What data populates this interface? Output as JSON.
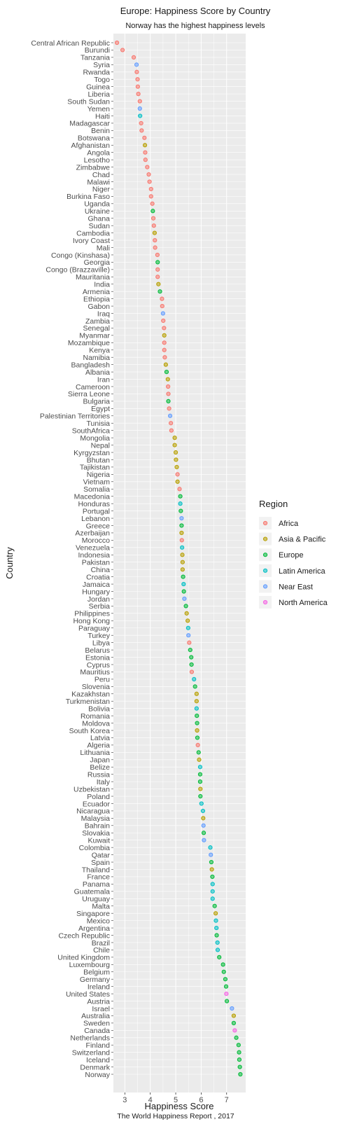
{
  "chart_data": {
    "type": "scatter",
    "title": "Europe: Happiness Score by Country",
    "subtitle": "Norway has the highest happiness levels",
    "xlabel": "Happiness Score",
    "ylabel": "Country",
    "caption": "The World Happiness Report , 2017",
    "xlim": [
      2.55,
      7.75
    ],
    "xticks": [
      3,
      4,
      5,
      6,
      7
    ],
    "grid": true,
    "legend_title": "Region",
    "legend_position": "right",
    "regions": [
      {
        "name": "Africa",
        "color": "#F8766D"
      },
      {
        "name": "Asia & Pacific",
        "color": "#B79F00"
      },
      {
        "name": "Europe",
        "color": "#00BA38"
      },
      {
        "name": "Latin America",
        "color": "#00BFC4"
      },
      {
        "name": "Near East",
        "color": "#619CFF"
      },
      {
        "name": "North America",
        "color": "#F564E3"
      }
    ],
    "points": [
      {
        "country": "Central African Republic",
        "score": 2.69,
        "region": "Africa"
      },
      {
        "country": "Burundi",
        "score": 2.91,
        "region": "Africa"
      },
      {
        "country": "Tanzania",
        "score": 3.35,
        "region": "Africa"
      },
      {
        "country": "Syria",
        "score": 3.46,
        "region": "Near East"
      },
      {
        "country": "Rwanda",
        "score": 3.47,
        "region": "Africa"
      },
      {
        "country": "Togo",
        "score": 3.5,
        "region": "Africa"
      },
      {
        "country": "Guinea",
        "score": 3.51,
        "region": "Africa"
      },
      {
        "country": "Liberia",
        "score": 3.53,
        "region": "Africa"
      },
      {
        "country": "South Sudan",
        "score": 3.59,
        "region": "Africa"
      },
      {
        "country": "Yemen",
        "score": 3.59,
        "region": "Near East"
      },
      {
        "country": "Haiti",
        "score": 3.6,
        "region": "Latin America"
      },
      {
        "country": "Madagascar",
        "score": 3.64,
        "region": "Africa"
      },
      {
        "country": "Benin",
        "score": 3.66,
        "region": "Africa"
      },
      {
        "country": "Botswana",
        "score": 3.77,
        "region": "Africa"
      },
      {
        "country": "Afghanistan",
        "score": 3.79,
        "region": "Asia & Pacific"
      },
      {
        "country": "Angola",
        "score": 3.8,
        "region": "Africa"
      },
      {
        "country": "Lesotho",
        "score": 3.81,
        "region": "Africa"
      },
      {
        "country": "Zimbabwe",
        "score": 3.88,
        "region": "Africa"
      },
      {
        "country": "Chad",
        "score": 3.94,
        "region": "Africa"
      },
      {
        "country": "Malawi",
        "score": 3.97,
        "region": "Africa"
      },
      {
        "country": "Niger",
        "score": 4.03,
        "region": "Africa"
      },
      {
        "country": "Burkina Faso",
        "score": 4.03,
        "region": "Africa"
      },
      {
        "country": "Uganda",
        "score": 4.08,
        "region": "Africa"
      },
      {
        "country": "Ukraine",
        "score": 4.1,
        "region": "Europe"
      },
      {
        "country": "Ghana",
        "score": 4.12,
        "region": "Africa"
      },
      {
        "country": "Sudan",
        "score": 4.14,
        "region": "Africa"
      },
      {
        "country": "Cambodia",
        "score": 4.17,
        "region": "Asia & Pacific"
      },
      {
        "country": "Ivory Coast",
        "score": 4.18,
        "region": "Africa"
      },
      {
        "country": "Mali",
        "score": 4.19,
        "region": "Africa"
      },
      {
        "country": "Congo (Kinshasa)",
        "score": 4.28,
        "region": "Africa"
      },
      {
        "country": "Georgia",
        "score": 4.29,
        "region": "Europe"
      },
      {
        "country": "Congo (Brazzaville)",
        "score": 4.29,
        "region": "Africa"
      },
      {
        "country": "Mauritania",
        "score": 4.29,
        "region": "Africa"
      },
      {
        "country": "India",
        "score": 4.32,
        "region": "Asia & Pacific"
      },
      {
        "country": "Armenia",
        "score": 4.38,
        "region": "Europe"
      },
      {
        "country": "Ethiopia",
        "score": 4.46,
        "region": "Africa"
      },
      {
        "country": "Gabon",
        "score": 4.47,
        "region": "Africa"
      },
      {
        "country": "Iraq",
        "score": 4.5,
        "region": "Near East"
      },
      {
        "country": "Zambia",
        "score": 4.51,
        "region": "Africa"
      },
      {
        "country": "Senegal",
        "score": 4.54,
        "region": "Africa"
      },
      {
        "country": "Myanmar",
        "score": 4.55,
        "region": "Asia & Pacific"
      },
      {
        "country": "Mozambique",
        "score": 4.55,
        "region": "Africa"
      },
      {
        "country": "Kenya",
        "score": 4.55,
        "region": "Africa"
      },
      {
        "country": "Namibia",
        "score": 4.57,
        "region": "Africa"
      },
      {
        "country": "Bangladesh",
        "score": 4.61,
        "region": "Asia & Pacific"
      },
      {
        "country": "Albania",
        "score": 4.64,
        "region": "Europe"
      },
      {
        "country": "Iran",
        "score": 4.69,
        "region": "Asia & Pacific"
      },
      {
        "country": "Cameroon",
        "score": 4.7,
        "region": "Africa"
      },
      {
        "country": "Sierra Leone",
        "score": 4.71,
        "region": "Africa"
      },
      {
        "country": "Bulgaria",
        "score": 4.71,
        "region": "Europe"
      },
      {
        "country": "Egypt",
        "score": 4.74,
        "region": "Africa"
      },
      {
        "country": "Palestinian Territories",
        "score": 4.78,
        "region": "Near East"
      },
      {
        "country": "Tunisia",
        "score": 4.81,
        "region": "Africa"
      },
      {
        "country": "SouthAfrica",
        "score": 4.83,
        "region": "Africa"
      },
      {
        "country": "Mongolia",
        "score": 4.96,
        "region": "Asia & Pacific"
      },
      {
        "country": "Nepal",
        "score": 4.96,
        "region": "Asia & Pacific"
      },
      {
        "country": "Kyrgyzstan",
        "score": 5.0,
        "region": "Asia & Pacific"
      },
      {
        "country": "Bhutan",
        "score": 5.01,
        "region": "Asia & Pacific"
      },
      {
        "country": "Tajikistan",
        "score": 5.04,
        "region": "Asia & Pacific"
      },
      {
        "country": "Nigeria",
        "score": 5.07,
        "region": "Africa"
      },
      {
        "country": "Vietnam",
        "score": 5.07,
        "region": "Asia & Pacific"
      },
      {
        "country": "Somalia",
        "score": 5.15,
        "region": "Africa"
      },
      {
        "country": "Macedonia",
        "score": 5.18,
        "region": "Europe"
      },
      {
        "country": "Honduras",
        "score": 5.18,
        "region": "Latin America"
      },
      {
        "country": "Portugal",
        "score": 5.2,
        "region": "Europe"
      },
      {
        "country": "Lebanon",
        "score": 5.23,
        "region": "Near East"
      },
      {
        "country": "Greece",
        "score": 5.23,
        "region": "Europe"
      },
      {
        "country": "Azerbaijan",
        "score": 5.23,
        "region": "Asia & Pacific"
      },
      {
        "country": "Morocco",
        "score": 5.24,
        "region": "Africa"
      },
      {
        "country": "Venezuela",
        "score": 5.25,
        "region": "Latin America"
      },
      {
        "country": "Indonesia",
        "score": 5.26,
        "region": "Asia & Pacific"
      },
      {
        "country": "Pakistan",
        "score": 5.27,
        "region": "Asia & Pacific"
      },
      {
        "country": "China",
        "score": 5.27,
        "region": "Asia & Pacific"
      },
      {
        "country": "Croatia",
        "score": 5.29,
        "region": "Europe"
      },
      {
        "country": "Jamaica",
        "score": 5.31,
        "region": "Latin America"
      },
      {
        "country": "Hungary",
        "score": 5.32,
        "region": "Europe"
      },
      {
        "country": "Jordan",
        "score": 5.34,
        "region": "Near East"
      },
      {
        "country": "Serbia",
        "score": 5.4,
        "region": "Europe"
      },
      {
        "country": "Philippines",
        "score": 5.43,
        "region": "Asia & Pacific"
      },
      {
        "country": "Hong Kong",
        "score": 5.47,
        "region": "Asia & Pacific"
      },
      {
        "country": "Paraguay",
        "score": 5.49,
        "region": "Latin America"
      },
      {
        "country": "Turkey",
        "score": 5.5,
        "region": "Near East"
      },
      {
        "country": "Libya",
        "score": 5.53,
        "region": "Africa"
      },
      {
        "country": "Belarus",
        "score": 5.57,
        "region": "Europe"
      },
      {
        "country": "Estonia",
        "score": 5.61,
        "region": "Europe"
      },
      {
        "country": "Cyprus",
        "score": 5.62,
        "region": "Europe"
      },
      {
        "country": "Mauritius",
        "score": 5.63,
        "region": "Africa"
      },
      {
        "country": "Peru",
        "score": 5.72,
        "region": "Latin America"
      },
      {
        "country": "Slovenia",
        "score": 5.76,
        "region": "Europe"
      },
      {
        "country": "Kazakhstan",
        "score": 5.82,
        "region": "Asia & Pacific"
      },
      {
        "country": "Turkmenistan",
        "score": 5.82,
        "region": "Asia & Pacific"
      },
      {
        "country": "Bolivia",
        "score": 5.82,
        "region": "Latin America"
      },
      {
        "country": "Romania",
        "score": 5.83,
        "region": "Europe"
      },
      {
        "country": "Moldova",
        "score": 5.84,
        "region": "Europe"
      },
      {
        "country": "South Korea",
        "score": 5.84,
        "region": "Asia & Pacific"
      },
      {
        "country": "Latvia",
        "score": 5.85,
        "region": "Europe"
      },
      {
        "country": "Algeria",
        "score": 5.87,
        "region": "Africa"
      },
      {
        "country": "Lithuania",
        "score": 5.9,
        "region": "Europe"
      },
      {
        "country": "Japan",
        "score": 5.92,
        "region": "Asia & Pacific"
      },
      {
        "country": "Belize",
        "score": 5.96,
        "region": "Latin America"
      },
      {
        "country": "Russia",
        "score": 5.96,
        "region": "Europe"
      },
      {
        "country": "Italy",
        "score": 5.96,
        "region": "Europe"
      },
      {
        "country": "Uzbekistan",
        "score": 5.97,
        "region": "Asia & Pacific"
      },
      {
        "country": "Poland",
        "score": 5.97,
        "region": "Europe"
      },
      {
        "country": "Ecuador",
        "score": 6.01,
        "region": "Latin America"
      },
      {
        "country": "Nicaragua",
        "score": 6.07,
        "region": "Latin America"
      },
      {
        "country": "Malaysia",
        "score": 6.08,
        "region": "Asia & Pacific"
      },
      {
        "country": "Bahrain",
        "score": 6.09,
        "region": "Near East"
      },
      {
        "country": "Slovakia",
        "score": 6.1,
        "region": "Europe"
      },
      {
        "country": "Kuwait",
        "score": 6.11,
        "region": "Near East"
      },
      {
        "country": "Colombia",
        "score": 6.36,
        "region": "Latin America"
      },
      {
        "country": "Qatar",
        "score": 6.38,
        "region": "Near East"
      },
      {
        "country": "Spain",
        "score": 6.4,
        "region": "Europe"
      },
      {
        "country": "Thailand",
        "score": 6.42,
        "region": "Asia & Pacific"
      },
      {
        "country": "France",
        "score": 6.44,
        "region": "Europe"
      },
      {
        "country": "Panama",
        "score": 6.45,
        "region": "Latin America"
      },
      {
        "country": "Guatemala",
        "score": 6.45,
        "region": "Latin America"
      },
      {
        "country": "Uruguay",
        "score": 6.45,
        "region": "Latin America"
      },
      {
        "country": "Malta",
        "score": 6.53,
        "region": "Europe"
      },
      {
        "country": "Singapore",
        "score": 6.57,
        "region": "Asia & Pacific"
      },
      {
        "country": "Mexico",
        "score": 6.58,
        "region": "Latin America"
      },
      {
        "country": "Argentina",
        "score": 6.6,
        "region": "Latin America"
      },
      {
        "country": "Czech Republic",
        "score": 6.61,
        "region": "Europe"
      },
      {
        "country": "Brazil",
        "score": 6.64,
        "region": "Latin America"
      },
      {
        "country": "Chile",
        "score": 6.65,
        "region": "Latin America"
      },
      {
        "country": "United Kingdom",
        "score": 6.71,
        "region": "Europe"
      },
      {
        "country": "Luxembourg",
        "score": 6.86,
        "region": "Europe"
      },
      {
        "country": "Belgium",
        "score": 6.89,
        "region": "Europe"
      },
      {
        "country": "Germany",
        "score": 6.95,
        "region": "Europe"
      },
      {
        "country": "Ireland",
        "score": 6.98,
        "region": "Europe"
      },
      {
        "country": "United States",
        "score": 6.99,
        "region": "North America"
      },
      {
        "country": "Austria",
        "score": 7.01,
        "region": "Europe"
      },
      {
        "country": "Israel",
        "score": 7.21,
        "region": "Near East"
      },
      {
        "country": "Australia",
        "score": 7.28,
        "region": "Asia & Pacific"
      },
      {
        "country": "Sweden",
        "score": 7.28,
        "region": "Europe"
      },
      {
        "country": "Canada",
        "score": 7.32,
        "region": "North America"
      },
      {
        "country": "Netherlands",
        "score": 7.38,
        "region": "Europe"
      },
      {
        "country": "Finland",
        "score": 7.47,
        "region": "Europe"
      },
      {
        "country": "Switzerland",
        "score": 7.49,
        "region": "Europe"
      },
      {
        "country": "Iceland",
        "score": 7.5,
        "region": "Europe"
      },
      {
        "country": "Denmark",
        "score": 7.52,
        "region": "Europe"
      },
      {
        "country": "Norway",
        "score": 7.54,
        "region": "Europe"
      }
    ]
  }
}
